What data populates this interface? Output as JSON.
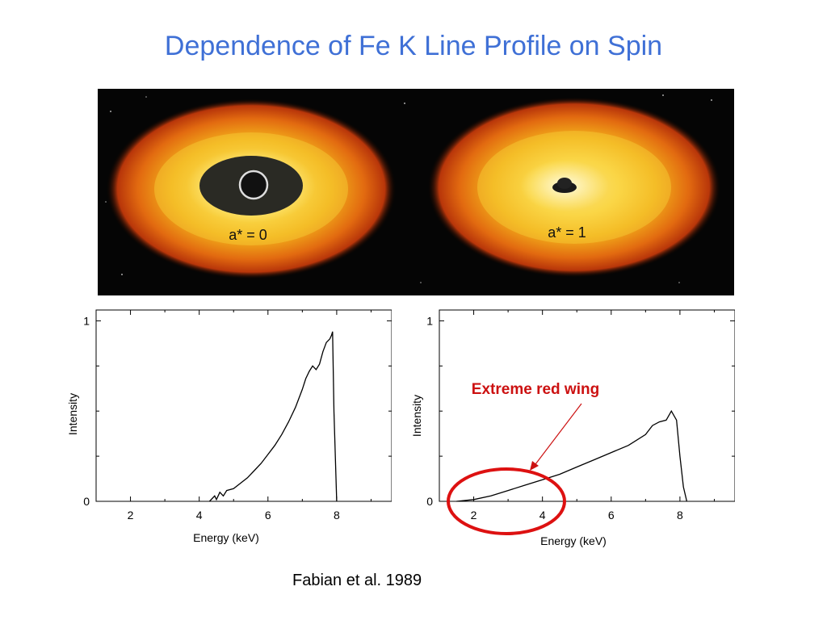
{
  "title": "Dependence of Fe K Line Profile on Spin",
  "disk_panel": {
    "labels": [
      "a* = 0",
      "a* = 1"
    ]
  },
  "annotation": {
    "text": "Extreme red wing",
    "color": "#cc1111"
  },
  "citation": "Fabian et al. 1989",
  "colors": {
    "title": "#3f70d6",
    "annotation": "#cc1111"
  },
  "chart_data": [
    {
      "type": "line",
      "xlabel": "Energy (keV)",
      "ylabel": "Intensity",
      "xlim": [
        1,
        9.6
      ],
      "ylim": [
        0,
        1.06
      ],
      "xticks": [
        2,
        4,
        6,
        8
      ],
      "yticks": [
        0,
        1
      ],
      "series": [
        {
          "x": [
            4.3,
            4.45,
            4.5,
            4.6,
            4.7,
            4.8,
            5.0,
            5.2,
            5.4,
            5.6,
            5.8,
            6.0,
            6.2,
            6.4,
            6.6,
            6.8,
            7.0,
            7.1,
            7.2,
            7.3,
            7.4,
            7.5,
            7.6,
            7.7,
            7.8,
            7.85,
            7.88,
            7.92,
            8.0
          ],
          "y": [
            0.0,
            0.03,
            0.01,
            0.05,
            0.03,
            0.06,
            0.07,
            0.1,
            0.13,
            0.17,
            0.21,
            0.26,
            0.31,
            0.37,
            0.44,
            0.52,
            0.62,
            0.68,
            0.72,
            0.75,
            0.73,
            0.76,
            0.83,
            0.88,
            0.9,
            0.92,
            0.94,
            0.5,
            0.0
          ]
        }
      ]
    },
    {
      "type": "line",
      "xlabel": "Energy (keV)",
      "ylabel": "Intensity",
      "xlim": [
        1,
        9.6
      ],
      "ylim": [
        0,
        1.06
      ],
      "xticks": [
        2,
        4,
        6,
        8
      ],
      "yticks": [
        0,
        1
      ],
      "series": [
        {
          "x": [
            1.5,
            2.0,
            2.5,
            3.0,
            3.5,
            4.0,
            4.5,
            5.0,
            5.5,
            6.0,
            6.5,
            7.0,
            7.2,
            7.4,
            7.6,
            7.75,
            7.9,
            8.0,
            8.1,
            8.2
          ],
          "y": [
            0.0,
            0.01,
            0.03,
            0.06,
            0.09,
            0.12,
            0.15,
            0.19,
            0.23,
            0.27,
            0.31,
            0.37,
            0.42,
            0.44,
            0.45,
            0.5,
            0.45,
            0.25,
            0.08,
            0.0
          ]
        }
      ]
    }
  ]
}
